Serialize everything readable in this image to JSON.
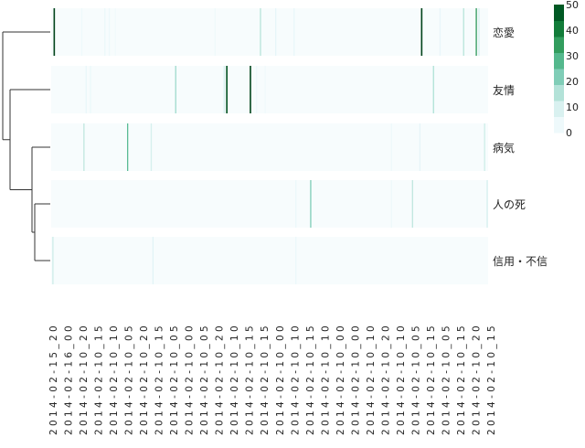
{
  "chart_data": {
    "type": "heatmap",
    "title": "",
    "rows": [
      "恋愛",
      "友情",
      "病気",
      "人の死",
      "信用・不信"
    ],
    "x_labels": [
      "2014-02-15_20",
      "2014-02-16_00",
      "2014-02-10_20",
      "2014-02-10_15",
      "2014-02-10_10",
      "2014-02-10_05",
      "2014-02-10_20",
      "2014-02-10_15",
      "2014-02-10_05",
      "2014-02-10_00",
      "2014-02-10_05",
      "2014-02-10_20",
      "2014-02-10_10",
      "2014-02-10_15",
      "2014-02-10_15",
      "2014-02-10_00",
      "2014-02-10_10",
      "2014-02-10_15",
      "2014-02-10_10",
      "2014-02-10_00",
      "2014-02-10_00",
      "2014-02-10_10",
      "2014-02-10_20",
      "2014-02-10_10",
      "2014-02-10_05",
      "2014-02-10_15",
      "2014-02-10_05",
      "2014-02-10_15",
      "2014-02-10_20",
      "2014-02-10_15"
    ],
    "x_domain": [
      0,
      1
    ],
    "spikes": [
      {
        "row": 0,
        "x": 0.007,
        "value": 50
      },
      {
        "row": 0,
        "x": 0.07,
        "value": 3
      },
      {
        "row": 0,
        "x": 0.123,
        "value": 4
      },
      {
        "row": 0,
        "x": 0.133,
        "value": 3
      },
      {
        "row": 0,
        "x": 0.147,
        "value": 2
      },
      {
        "row": 0,
        "x": 0.375,
        "value": 3
      },
      {
        "row": 0,
        "x": 0.479,
        "value": 15
      },
      {
        "row": 0,
        "x": 0.514,
        "value": 6
      },
      {
        "row": 0,
        "x": 0.556,
        "value": 5
      },
      {
        "row": 0,
        "x": 0.848,
        "value": 50
      },
      {
        "row": 0,
        "x": 0.89,
        "value": 5
      },
      {
        "row": 0,
        "x": 0.944,
        "value": 15
      },
      {
        "row": 0,
        "x": 0.973,
        "value": 35
      },
      {
        "row": 0,
        "x": 0.979,
        "value": 10
      },
      {
        "row": 1,
        "x": 0.08,
        "value": 5
      },
      {
        "row": 1,
        "x": 0.09,
        "value": 4
      },
      {
        "row": 1,
        "x": 0.285,
        "value": 18
      },
      {
        "row": 1,
        "x": 0.396,
        "value": 10
      },
      {
        "row": 1,
        "x": 0.402,
        "value": 48
      },
      {
        "row": 1,
        "x": 0.456,
        "value": 50
      },
      {
        "row": 1,
        "x": 0.47,
        "value": 3
      },
      {
        "row": 1,
        "x": 0.49,
        "value": 2
      },
      {
        "row": 1,
        "x": 0.875,
        "value": 16
      },
      {
        "row": 2,
        "x": 0.075,
        "value": 14
      },
      {
        "row": 2,
        "x": 0.175,
        "value": 27
      },
      {
        "row": 2,
        "x": 0.229,
        "value": 10
      },
      {
        "row": 2,
        "x": 0.779,
        "value": 3
      },
      {
        "row": 2,
        "x": 0.844,
        "value": 6
      },
      {
        "row": 2,
        "x": 0.992,
        "value": 12
      },
      {
        "row": 3,
        "x": 0.56,
        "value": 4
      },
      {
        "row": 3,
        "x": 0.594,
        "value": 22
      },
      {
        "row": 3,
        "x": 0.779,
        "value": 3
      },
      {
        "row": 3,
        "x": 0.827,
        "value": 14
      },
      {
        "row": 3,
        "x": 0.998,
        "value": 10
      },
      {
        "row": 4,
        "x": 0.004,
        "value": 12
      },
      {
        "row": 4,
        "x": 0.233,
        "value": 7
      },
      {
        "row": 4,
        "x": 0.56,
        "value": 4
      }
    ],
    "colorscale": {
      "min": 0,
      "max": 50,
      "ticks": [
        0,
        10,
        20,
        30,
        40,
        50
      ],
      "stops": [
        "#f7fcfd",
        "#e5f5f9",
        "#ccece6",
        "#99d8c9",
        "#66c2a4",
        "#41ae76",
        "#238b45",
        "#006d2c",
        "#00441b"
      ]
    },
    "dendrogram": "left, rows clustered",
    "colors": {
      "dendrogram_line": "#333333"
    }
  }
}
